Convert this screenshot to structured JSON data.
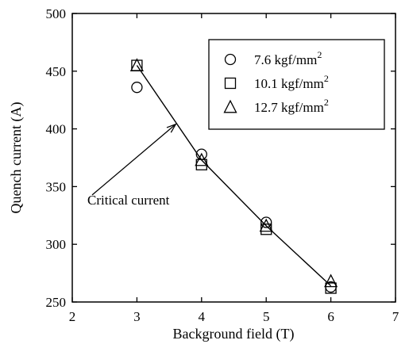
{
  "chart_data": {
    "type": "scatter",
    "xlabel": "Background field (T)",
    "ylabel": "Quench current (A)",
    "xlim": [
      2,
      7
    ],
    "ylim": [
      250,
      500
    ],
    "xticks": [
      2,
      3,
      4,
      5,
      6,
      7
    ],
    "yticks": [
      250,
      300,
      350,
      400,
      450,
      500
    ],
    "grid": false,
    "legend_position": "top-right",
    "series": [
      {
        "name": "7.6 kgf/mm",
        "superscript": "2",
        "marker": "circle",
        "x": [
          3,
          4,
          5,
          6
        ],
        "y": [
          436,
          378,
          319,
          263
        ]
      },
      {
        "name": "10.1 kgf/mm",
        "superscript": "2",
        "marker": "square",
        "x": [
          3,
          4,
          5,
          6
        ],
        "y": [
          455,
          369,
          313,
          262
        ]
      },
      {
        "name": "12.7 kgf/mm",
        "superscript": "2",
        "marker": "triangle",
        "x": [
          3,
          4,
          5,
          6
        ],
        "y": [
          455,
          373,
          316,
          268
        ]
      }
    ],
    "critical_line": {
      "x": [
        3,
        4,
        5,
        6
      ],
      "y": [
        455,
        373,
        316,
        264
      ]
    },
    "annotation": {
      "text": "Critical current",
      "anchor_x": 3.6,
      "anchor_y": 404
    }
  }
}
